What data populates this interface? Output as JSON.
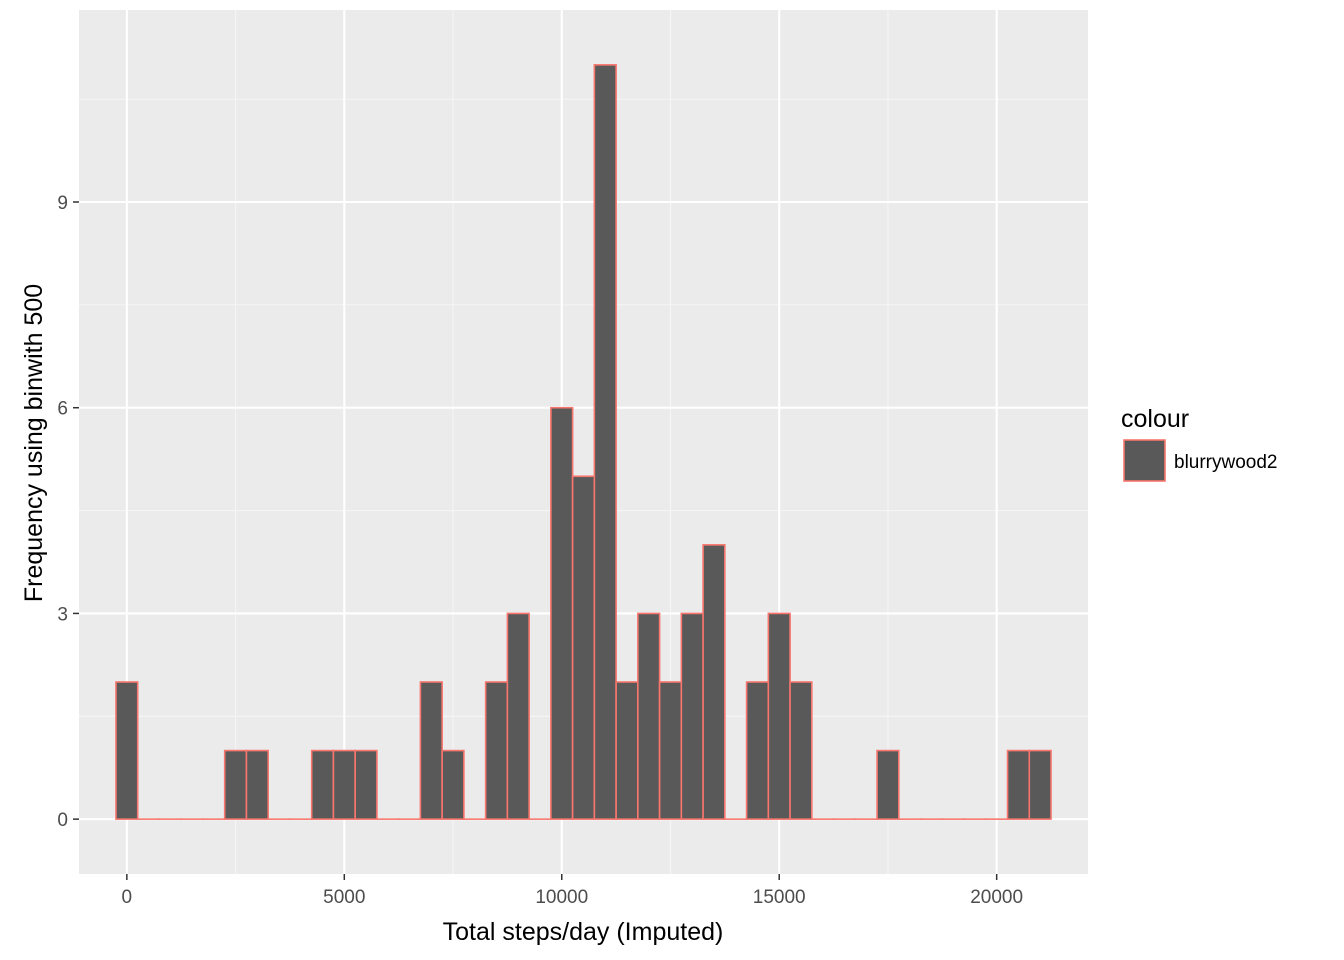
{
  "chart_data": {
    "type": "bar",
    "subtype": "histogram",
    "binwidth": 500,
    "xlabel": "Total steps/day (Imputed)",
    "ylabel": "Frequency using binwith 500",
    "xlim": [
      -1100,
      22100
    ],
    "ylim": [
      -0.8,
      11.8
    ],
    "x_ticks": [
      0,
      5000,
      10000,
      15000,
      20000
    ],
    "y_ticks": [
      0,
      3,
      6,
      9
    ],
    "grid": true,
    "legend": {
      "title": "colour",
      "entries": [
        "blurrywood2"
      ],
      "position": "right"
    },
    "colors": {
      "fill": "#595959",
      "outline": "#F8766D",
      "panel": "#EBEBEB",
      "grid_major": "#FFFFFF",
      "grid_minor": "#F5F5F5"
    },
    "bins": {
      "start": -250,
      "width": 500,
      "counts": [
        2,
        0,
        0,
        0,
        0,
        1,
        1,
        0,
        0,
        1,
        1,
        1,
        0,
        0,
        2,
        1,
        0,
        2,
        3,
        0,
        6,
        5,
        11,
        2,
        3,
        2,
        3,
        4,
        0,
        2,
        3,
        2,
        0,
        0,
        0,
        1,
        0,
        0,
        0,
        0,
        0,
        1,
        1
      ]
    }
  }
}
